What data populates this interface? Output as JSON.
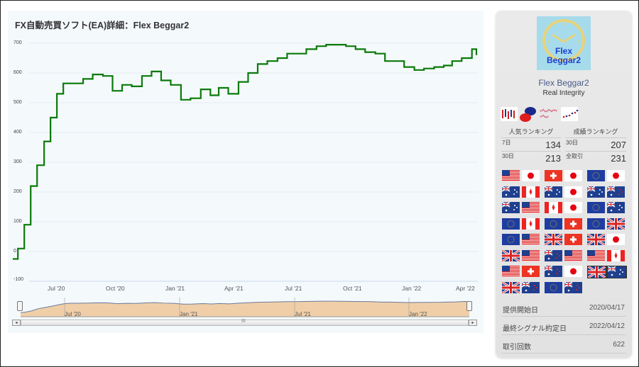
{
  "chart_data": {
    "type": "line",
    "title": "FX自動売買ソフト(EA)詳細：Flex Beggar2",
    "xlabel": "",
    "ylabel": "",
    "ylim": [
      -100,
      700
    ],
    "y_ticks": [
      "700",
      "600",
      "500",
      "400",
      "300",
      "200",
      "100",
      "0",
      "-100"
    ],
    "x_ticks": [
      "Jul '20",
      "Oct '20",
      "Jan '21",
      "Apr '21",
      "Jul '21",
      "Oct '21",
      "Jan '22",
      "Apr '22"
    ],
    "navigator_ticks": [
      "Jul '20",
      "Jan '21",
      "Jul '21",
      "Jan '22"
    ],
    "series": [
      {
        "name": "Flex Beggar2",
        "color": "#0a7a0a",
        "x": [
          "2020-04-17",
          "2020-04-25",
          "2020-05-05",
          "2020-05-15",
          "2020-05-25",
          "2020-06-05",
          "2020-06-15",
          "2020-06-25",
          "2020-07-05",
          "2020-07-20",
          "2020-08-05",
          "2020-08-20",
          "2020-09-05",
          "2020-09-20",
          "2020-10-05",
          "2020-10-20",
          "2020-11-05",
          "2020-11-20",
          "2020-12-05",
          "2020-12-20",
          "2021-01-05",
          "2021-01-20",
          "2021-02-05",
          "2021-02-20",
          "2021-03-05",
          "2021-03-20",
          "2021-04-05",
          "2021-04-20",
          "2021-05-05",
          "2021-05-20",
          "2021-06-05",
          "2021-06-20",
          "2021-07-05",
          "2021-07-20",
          "2021-08-05",
          "2021-08-20",
          "2021-09-05",
          "2021-09-20",
          "2021-10-05",
          "2021-10-20",
          "2021-11-05",
          "2021-11-20",
          "2021-12-05",
          "2021-12-20",
          "2022-01-05",
          "2022-01-20",
          "2022-02-05",
          "2022-02-20",
          "2022-03-05",
          "2022-03-20",
          "2022-04-05",
          "2022-04-12"
        ],
        "values": [
          -25,
          10,
          90,
          220,
          290,
          370,
          450,
          530,
          565,
          565,
          580,
          595,
          590,
          540,
          560,
          555,
          590,
          605,
          575,
          560,
          510,
          515,
          545,
          525,
          550,
          530,
          570,
          600,
          630,
          640,
          650,
          665,
          665,
          680,
          690,
          695,
          695,
          690,
          680,
          670,
          665,
          640,
          640,
          620,
          610,
          615,
          620,
          625,
          640,
          650,
          680,
          660
        ]
      }
    ],
    "navigator": {
      "fill": "#f0cfa8",
      "line": "#6a7a9a"
    }
  },
  "sidebar": {
    "logo_line1": "Flex",
    "logo_line2": "Beggar2",
    "ea_name": "Flex Beggar2",
    "developer": "Real Integrity",
    "icons": [
      "candlestick-icon",
      "chat-bubbles-icon",
      "multi-chart-icon",
      "scatter-trend-icon"
    ],
    "popularity_ranking": {
      "label": "人気ランキング",
      "rows": [
        {
          "label": "7日",
          "value": "134"
        },
        {
          "label": "30日",
          "value": "213"
        }
      ]
    },
    "performance_ranking": {
      "label": "成績ランキング",
      "rows": [
        {
          "label": "30日",
          "value": "207"
        },
        {
          "label": "全取引",
          "value": "231"
        }
      ]
    },
    "currency_pairs": [
      [
        "USD",
        "JPY"
      ],
      [
        "CHF",
        "JPY"
      ],
      [
        "EUR",
        "JPY"
      ],
      [
        "AUD",
        "CAD"
      ],
      [
        "AUD",
        "JPY"
      ],
      [
        "AUD",
        "NZD"
      ],
      [
        "AUD",
        "USD"
      ],
      [
        "CAD",
        "JPY"
      ],
      [
        "EUR",
        "AUD"
      ],
      [
        "EUR",
        "CAD"
      ],
      [
        "EUR",
        "CHF"
      ],
      [
        "EUR",
        "GBP"
      ],
      [
        "EUR",
        "USD"
      ],
      [
        "GBP",
        "CHF"
      ],
      [
        "GBP",
        "JPY"
      ],
      [
        "GBP",
        "USD"
      ],
      [
        "NZD",
        "USD"
      ],
      [
        "USD",
        "CAD"
      ],
      [
        "USD",
        "CHF"
      ],
      [
        "NZD",
        "JPY"
      ],
      [
        "GBP",
        "AUD"
      ],
      [
        "GBP",
        "NZD"
      ],
      [
        "EUR",
        "NZD"
      ]
    ],
    "info": [
      {
        "label": "提供開始日",
        "value": "2020/04/17"
      },
      {
        "label": "最終シグナル約定日",
        "value": "2022/04/12"
      },
      {
        "label": "取引回数",
        "value": "622"
      }
    ]
  }
}
